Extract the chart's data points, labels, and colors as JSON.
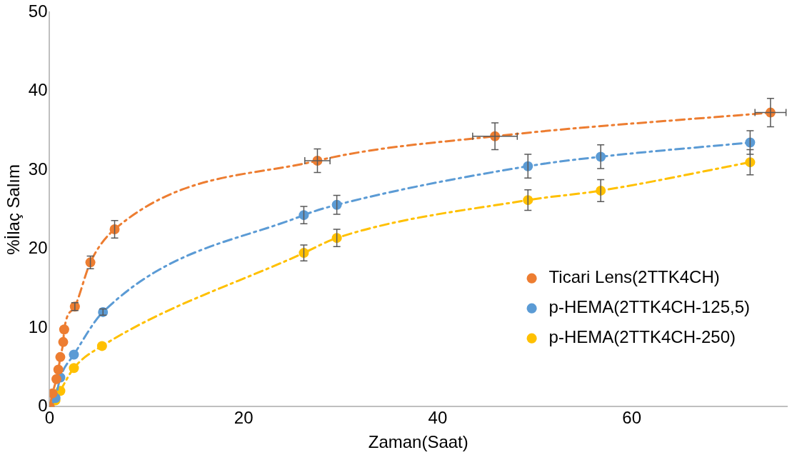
{
  "chart_data": {
    "type": "line",
    "xlabel": "Zaman(Saat)",
    "ylabel": "%İlaç Salım",
    "xlim": [
      0,
      76
    ],
    "xticks": [
      0,
      20,
      40,
      60
    ],
    "ylim": [
      0,
      50
    ],
    "yticks": [
      0,
      10,
      20,
      30,
      40,
      50
    ],
    "grid": false,
    "legend": "right",
    "marker": "circle",
    "line_style": "dashed",
    "series": [
      {
        "name": "Ticari Lens(2TTK4CH)",
        "color": "#ed7d31",
        "x": [
          0,
          0.3,
          0.7,
          0.9,
          1.1,
          1.4,
          1.5,
          2.6,
          4.2,
          6.7,
          27.6,
          45.9,
          74.3
        ],
        "values": [
          0,
          1.7,
          3.5,
          4.7,
          6.3,
          8.2,
          9.8,
          12.7,
          18.3,
          22.5,
          31.2,
          34.3,
          37.3
        ],
        "errors": [
          null,
          null,
          null,
          null,
          null,
          null,
          null,
          0.5,
          0.8,
          1.1,
          1.5,
          1.7,
          1.8
        ],
        "xerrors": [
          null,
          null,
          null,
          null,
          null,
          null,
          null,
          null,
          null,
          null,
          1.3,
          2.3,
          1.6
        ]
      },
      {
        "name": "p-HEMA(2TTK4CH-125,5)",
        "color": "#5b9bd5",
        "x": [
          0,
          0.6,
          1.1,
          2.5,
          5.5,
          26.2,
          29.6,
          49.3,
          56.8,
          72.2
        ],
        "values": [
          0,
          1.1,
          3.7,
          6.6,
          12.0,
          24.3,
          25.6,
          30.5,
          31.7,
          33.5
        ],
        "errors": [
          null,
          null,
          null,
          null,
          0.4,
          1.1,
          1.2,
          1.5,
          1.5,
          1.5
        ]
      },
      {
        "name": "p-HEMA(2TTK4CH-250)",
        "color": "#ffc000",
        "x": [
          0,
          0.6,
          1.1,
          2.5,
          5.4,
          26.2,
          29.6,
          49.3,
          56.8,
          72.2
        ],
        "values": [
          0,
          0.8,
          2.0,
          4.9,
          7.7,
          19.5,
          21.4,
          26.2,
          27.4,
          31.0
        ],
        "errors": [
          null,
          null,
          null,
          null,
          null,
          1.0,
          1.1,
          1.3,
          1.4,
          1.6
        ]
      }
    ]
  }
}
